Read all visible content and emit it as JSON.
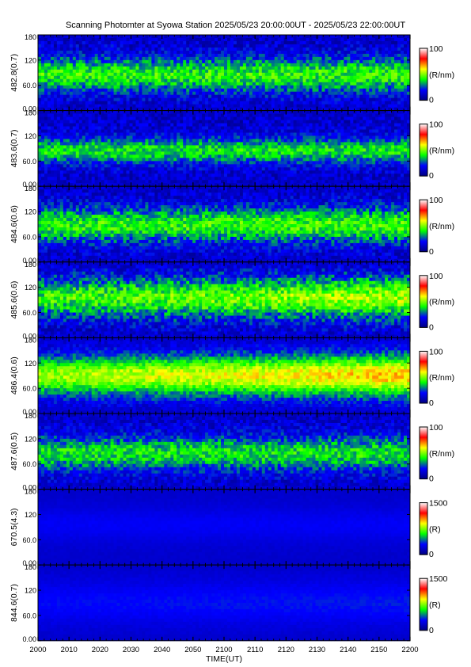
{
  "title": "Scanning Photomter at Syowa Station  2025/05/23 20:00:00UT - 2025/05/23 22:00:00UT",
  "chart_data": {
    "type": "heatmap",
    "xlabel": "TIME(UT)",
    "x_ticks": [
      "2000",
      "2010",
      "2020",
      "2030",
      "2040",
      "2050",
      "2100",
      "2110",
      "2120",
      "2130",
      "2140",
      "2150",
      "2200"
    ],
    "y_ticks": [
      "0.00",
      "60.0",
      "120",
      "180"
    ],
    "ylim": [
      0,
      180
    ],
    "colormap": [
      "#00007f",
      "#0000ff",
      "#00ff00",
      "#ffff00",
      "#ff0000",
      "#ffffff"
    ],
    "panels": [
      {
        "ylabel": "482.8(0.7)",
        "cbar_max": "100",
        "cbar_min": "0",
        "unit": "(R/nm)",
        "base": "#141e93",
        "band_y": 85,
        "band_width": 40,
        "intensity": 0.55,
        "noise": 0.35,
        "trend": 0.0
      },
      {
        "ylabel": "483.6(0.7)",
        "cbar_max": "100",
        "cbar_min": "0",
        "unit": "(R/nm)",
        "base": "#141e93",
        "band_y": 85,
        "band_width": 30,
        "intensity": 0.5,
        "noise": 0.32,
        "trend": 0.0
      },
      {
        "ylabel": "484.6(0.6)",
        "cbar_max": "100",
        "cbar_min": "0",
        "unit": "(R/nm)",
        "base": "#141e93",
        "band_y": 88,
        "band_width": 40,
        "intensity": 0.55,
        "noise": 0.35,
        "trend": 0.05
      },
      {
        "ylabel": "485.6(0.6)",
        "cbar_max": "100",
        "cbar_min": "0",
        "unit": "(R/nm)",
        "base": "#141e93",
        "band_y": 95,
        "band_width": 45,
        "intensity": 0.55,
        "noise": 0.38,
        "trend": 0.2
      },
      {
        "ylabel": "486.4(0.6)",
        "cbar_max": "100",
        "cbar_min": "0",
        "unit": "(R/nm)",
        "base": "#141e93",
        "band_y": 90,
        "band_width": 45,
        "intensity": 0.72,
        "noise": 0.25,
        "trend": 0.25
      },
      {
        "ylabel": "487.6(0.5)",
        "cbar_max": "100",
        "cbar_min": "0",
        "unit": "(R/nm)",
        "base": "#141e93",
        "band_y": 85,
        "band_width": 40,
        "intensity": 0.5,
        "noise": 0.33,
        "trend": 0.0
      },
      {
        "ylabel": "670.5(4.3)",
        "cbar_max": "1500",
        "cbar_min": "0",
        "unit": "(R)",
        "base": "#0a1470",
        "band_y": 95,
        "band_width": 40,
        "intensity": 0.12,
        "noise": 0.04,
        "trend": 0.0
      },
      {
        "ylabel": "844.6(0.7)",
        "cbar_max": "1500",
        "cbar_min": "0",
        "unit": "(R)",
        "base": "#0a1470",
        "band_y": 90,
        "band_width": 50,
        "intensity": 0.15,
        "noise": 0.05,
        "trend": 0.03
      }
    ]
  }
}
